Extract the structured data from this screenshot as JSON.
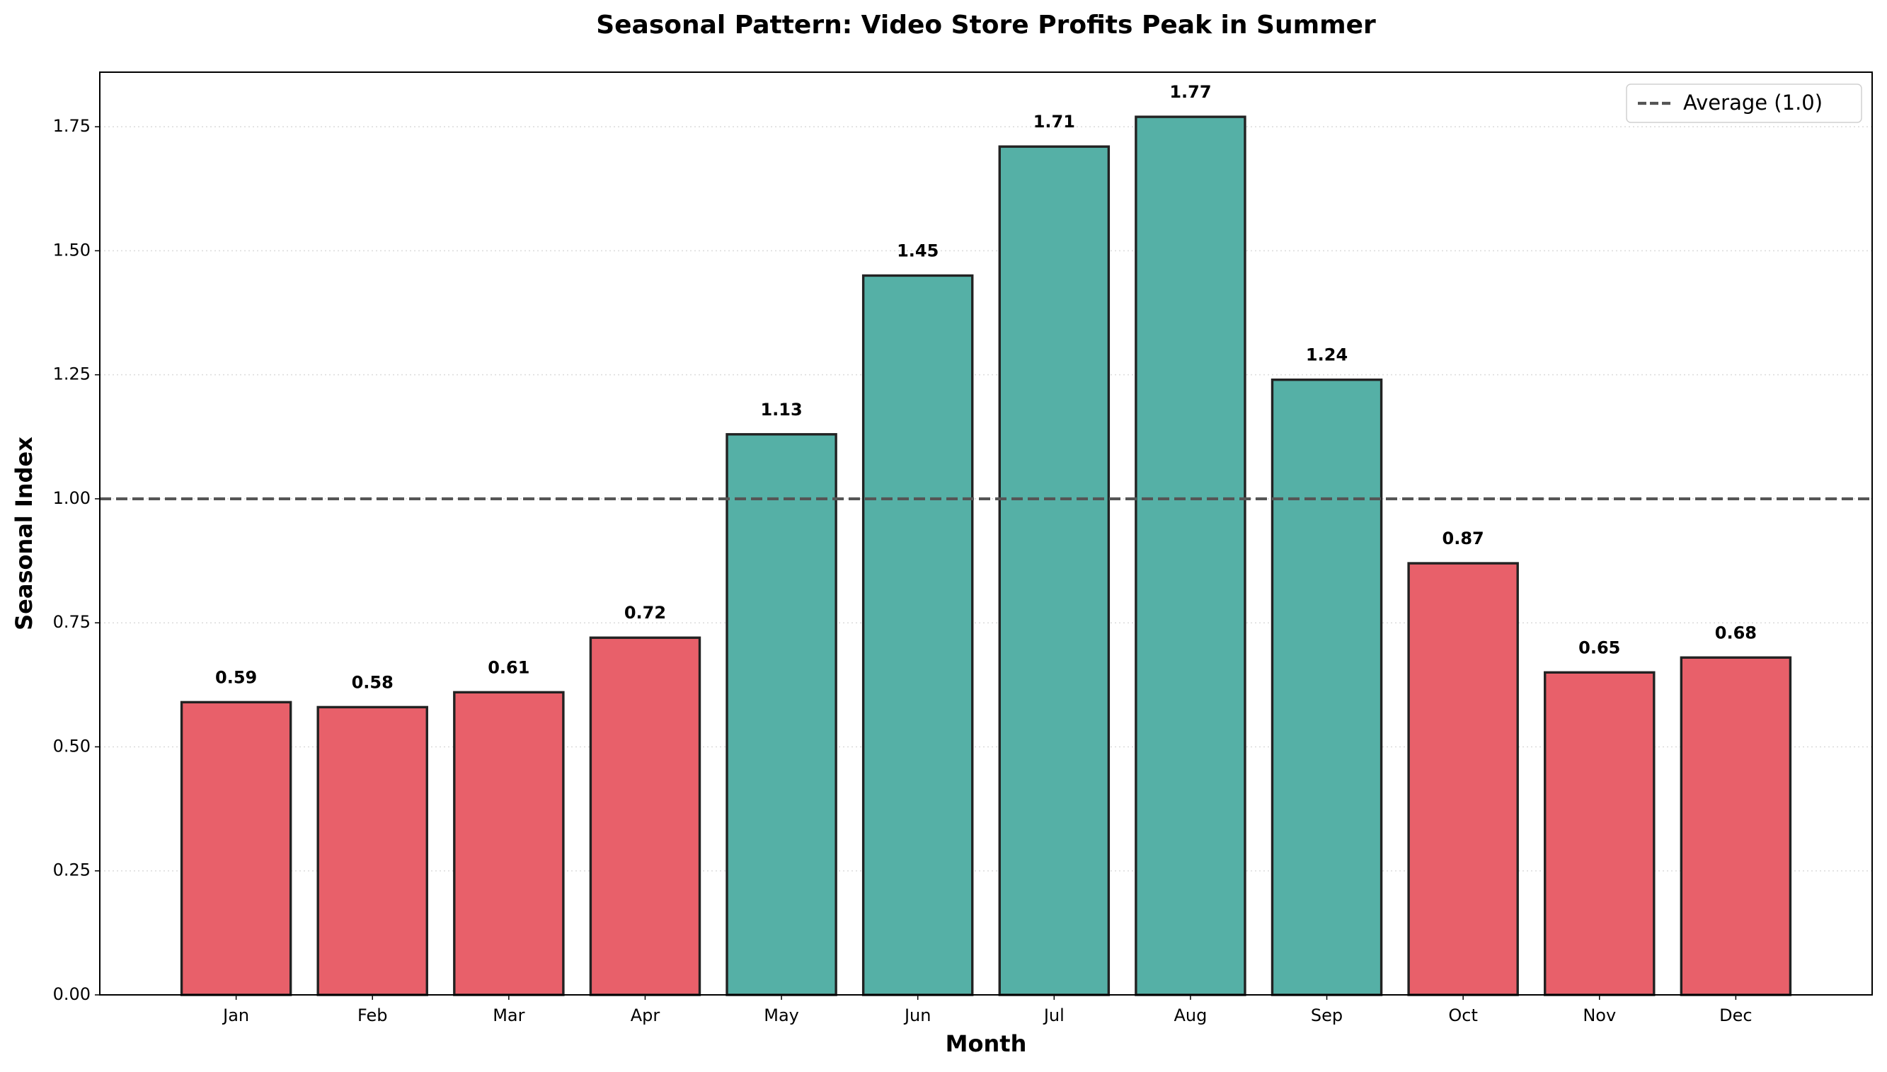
{
  "chart_data": {
    "type": "bar",
    "title": "Seasonal Pattern: Video Store Profits Peak in Summer",
    "xlabel": "Month",
    "ylabel": "Seasonal Index",
    "categories": [
      "Jan",
      "Feb",
      "Mar",
      "Apr",
      "May",
      "Jun",
      "Jul",
      "Aug",
      "Sep",
      "Oct",
      "Nov",
      "Dec"
    ],
    "values": [
      0.59,
      0.58,
      0.61,
      0.72,
      1.13,
      1.45,
      1.71,
      1.77,
      1.24,
      0.87,
      0.65,
      0.68
    ],
    "colors": [
      "#e8606a",
      "#e8606a",
      "#e8606a",
      "#e8606a",
      "#55b0a6",
      "#55b0a6",
      "#55b0a6",
      "#55b0a6",
      "#55b0a6",
      "#e8606a",
      "#e8606a",
      "#e8606a"
    ],
    "ylim": [
      0,
      1.86
    ],
    "yticks": [
      {
        "value": 0,
        "label": "0.00"
      },
      {
        "value": 0.25,
        "label": "0.25"
      },
      {
        "value": 0.5,
        "label": "0.50"
      },
      {
        "value": 0.75,
        "label": "0.75"
      },
      {
        "value": 1,
        "label": "1.00"
      },
      {
        "value": 1.25,
        "label": "1.25"
      },
      {
        "value": 1.5,
        "label": "1.50"
      },
      {
        "value": 1.75,
        "label": "1.75"
      }
    ],
    "grid": true,
    "reference_line": {
      "value": 1.0,
      "label": "Average (1.0)",
      "color": "#555555"
    },
    "legend": "upper right"
  }
}
